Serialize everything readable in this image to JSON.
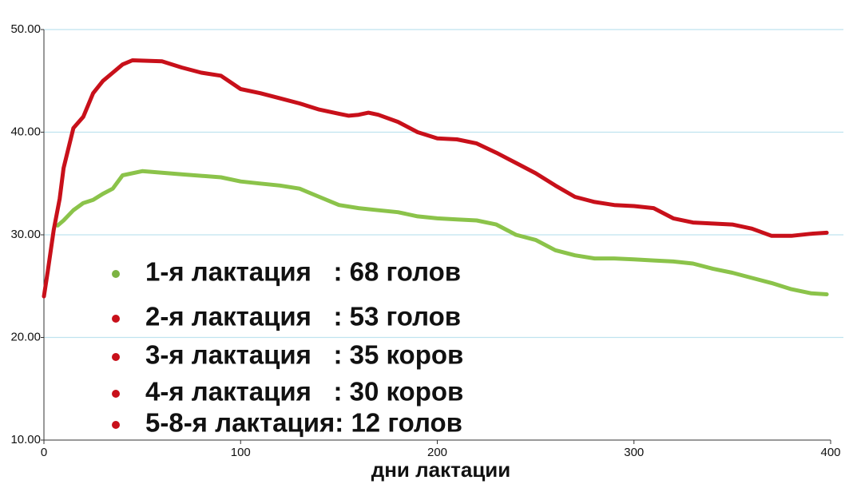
{
  "chart_data": {
    "type": "line",
    "xlabel": "дни лактации",
    "xlim": [
      0,
      400
    ],
    "xticks": [
      0,
      100,
      200,
      300,
      400
    ],
    "ylim": [
      10,
      50
    ],
    "yticks": [
      {
        "value": 10,
        "label": "10.00"
      },
      {
        "value": 20,
        "label": "20.00"
      },
      {
        "value": 30,
        "label": "30.00"
      },
      {
        "value": 40,
        "label": "40.00"
      },
      {
        "value": 50,
        "label": "50.00"
      }
    ],
    "grid": true,
    "series": [
      {
        "color": "#8bc34a",
        "x": [
          7,
          10,
          15,
          20,
          25,
          30,
          35,
          40,
          50,
          70,
          90,
          100,
          110,
          120,
          130,
          140,
          150,
          160,
          170,
          180,
          190,
          200,
          210,
          220,
          230,
          240,
          250,
          260,
          270,
          280,
          290,
          300,
          310,
          320,
          330,
          340,
          350,
          360,
          370,
          380,
          390,
          398
        ],
        "values": [
          30.9,
          31.4,
          32.4,
          33.1,
          33.4,
          34.0,
          34.5,
          35.8,
          36.2,
          35.9,
          35.6,
          35.2,
          35.0,
          34.8,
          34.5,
          33.7,
          32.9,
          32.6,
          32.4,
          32.2,
          31.8,
          31.6,
          31.5,
          31.4,
          31.0,
          30.0,
          29.5,
          28.5,
          28.0,
          27.7,
          27.7,
          27.6,
          27.5,
          27.4,
          27.2,
          26.7,
          26.3,
          25.8,
          25.3,
          24.7,
          24.3,
          24.2
        ]
      },
      {
        "color": "#c8101a",
        "x": [
          0,
          2,
          5,
          8,
          10,
          15,
          20,
          25,
          30,
          35,
          40,
          45,
          60,
          70,
          80,
          90,
          100,
          110,
          120,
          130,
          140,
          150,
          155,
          160,
          165,
          170,
          180,
          190,
          200,
          210,
          220,
          230,
          240,
          250,
          260,
          270,
          280,
          290,
          300,
          310,
          320,
          330,
          340,
          350,
          360,
          370,
          380,
          390,
          398
        ],
        "values": [
          24.0,
          26.5,
          30.5,
          33.5,
          36.5,
          40.4,
          41.5,
          43.8,
          45.0,
          45.8,
          46.6,
          47.0,
          46.9,
          46.3,
          45.8,
          45.5,
          44.2,
          43.8,
          43.3,
          42.8,
          42.2,
          41.8,
          41.6,
          41.7,
          41.9,
          41.7,
          41.0,
          40.0,
          39.4,
          39.3,
          38.9,
          38.0,
          37.0,
          36.0,
          34.8,
          33.7,
          33.2,
          32.9,
          32.8,
          32.6,
          31.6,
          31.2,
          31.1,
          31.0,
          30.6,
          29.9,
          29.9,
          30.1,
          30.2
        ]
      }
    ],
    "legend": [
      {
        "label": "1-я лактация   : 68 голов",
        "color": "#7cb342"
      },
      {
        "label": "2-я лактация   : 53 голов",
        "color": "#c8101a"
      },
      {
        "label": "3-я лактация   : 35 коров",
        "color": "#c8101a"
      },
      {
        "label": "4-я лактация   : 30 коров",
        "color": "#c8101a"
      },
      {
        "label": "5-8-я лактация: 12 голов",
        "color": "#c8101a"
      }
    ]
  }
}
